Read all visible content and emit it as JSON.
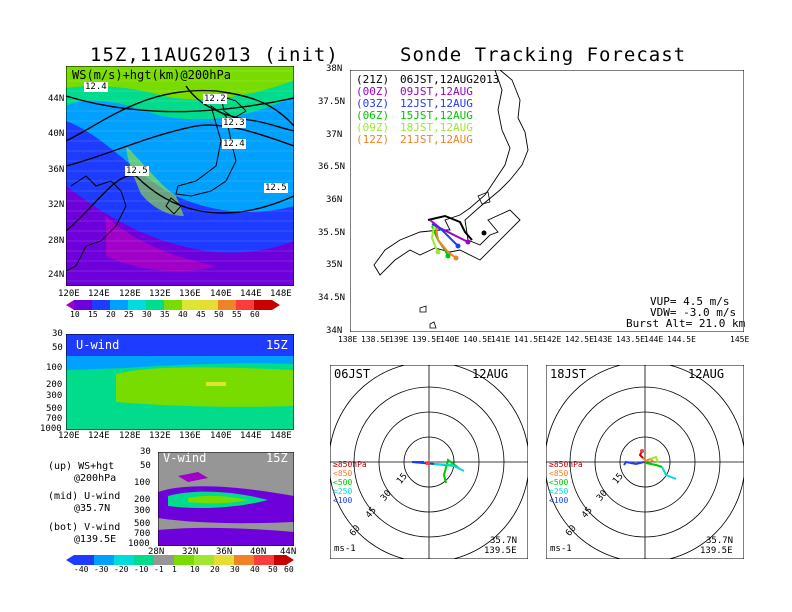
{
  "left": {
    "title": "15Z,11AUG2013 (init)",
    "map_label": "WS(m/s)+hgt(km)@200hPa",
    "lat_ticks": [
      "44N",
      "40N",
      "36N",
      "32N",
      "28N",
      "24N"
    ],
    "lon_ticks": [
      "120E",
      "124E",
      "128E",
      "132E",
      "136E",
      "140E",
      "144E",
      "148E"
    ],
    "height_labels": [
      "12.4",
      "12.2",
      "12.3",
      "12.4",
      "12.5",
      "12.5"
    ],
    "ws_colorbar": [
      "10",
      "15",
      "20",
      "25",
      "30",
      "35",
      "40",
      "45",
      "50",
      "55",
      "60"
    ],
    "uwind_label": "U-wind",
    "uwind_time": "15Z",
    "p_ticks": [
      "30",
      "50",
      "100",
      "200",
      "300",
      "500",
      "700",
      "1000"
    ],
    "vwind_label": "V-wind",
    "vwind_time": "15Z",
    "vlat_ticks": [
      "28N",
      "32N",
      "36N",
      "40N",
      "44N"
    ],
    "legend_up": [
      "(up) WS+hgt",
      "@200hPa"
    ],
    "legend_mid": [
      "(mid) U-wind",
      "@35.7N"
    ],
    "legend_bot": [
      "(bot) V-wind",
      "@139.5E"
    ],
    "wind_colorbar": [
      "-40",
      "-30",
      "-20",
      "-10",
      "-1",
      "1",
      "10",
      "20",
      "30",
      "40",
      "50",
      "60"
    ]
  },
  "right": {
    "title": "Sonde Tracking Forecast",
    "lat_ticks": [
      "38N",
      "37.5N",
      "37N",
      "36.5N",
      "36N",
      "35.5N",
      "35N",
      "34.5N",
      "34N"
    ],
    "lon_ticks": [
      "138E",
      "138.5E",
      "139E",
      "139.5E",
      "140E",
      "140.5E",
      "141E",
      "141.5E",
      "142E",
      "142.5E",
      "143E",
      "143.5E",
      "144E",
      "144.5E",
      "145E"
    ],
    "launches": [
      {
        "utc": "(21Z)",
        "jst": "06JST,12AUG2013",
        "color": "#000000"
      },
      {
        "utc": "(00Z)",
        "jst": "09JST,12AUG",
        "color": "#a000c8"
      },
      {
        "utc": "(03Z)",
        "jst": "12JST,12AUG",
        "color": "#1e3cff"
      },
      {
        "utc": "(06Z)",
        "jst": "15JST,12AUG",
        "color": "#00c800"
      },
      {
        "utc": "(09Z)",
        "jst": "18JST,12AUG",
        "color": "#a0e632"
      },
      {
        "utc": "(12Z)",
        "jst": "21JST,12AUG",
        "color": "#f08228"
      }
    ],
    "vup": "VUP= 4.5 m/s",
    "vdw": "VDW= -3.0 m/s",
    "burst": "Burst Alt= 21.0 km"
  },
  "hodo1": {
    "time": "06JST",
    "date": "12AUG",
    "rings": [
      "15",
      "30",
      "45",
      "60"
    ],
    "levels": [
      "≥850hPa",
      "<850",
      "<500",
      "<250",
      "<100"
    ],
    "units": "ms-1",
    "lat": "35.7N",
    "lon": "139.5E"
  },
  "hodo2": {
    "time": "18JST",
    "date": "12AUG",
    "rings": [
      "15",
      "30",
      "45",
      "60"
    ],
    "levels": [
      "≥850hPa",
      "<850",
      "<500",
      "<250",
      "<100"
    ],
    "units": "ms-1",
    "lat": "35.7N",
    "lon": "139.5E"
  },
  "colors": {
    "ws_scale": [
      "#a000c8",
      "#6e00dc",
      "#1e3cff",
      "#00a0ff",
      "#00dcdc",
      "#00dc8c",
      "#78dc00",
      "#dce632",
      "#e6dc32",
      "#f08228",
      "#fa3c3c",
      "#c80000"
    ],
    "wind_scale": [
      "#1e3cff",
      "#00a0ff",
      "#00dcdc",
      "#00dc8c",
      "#969696",
      "#78dc00",
      "#a0e632",
      "#e6dc32",
      "#f08228",
      "#fa3c3c",
      "#c80000"
    ]
  }
}
